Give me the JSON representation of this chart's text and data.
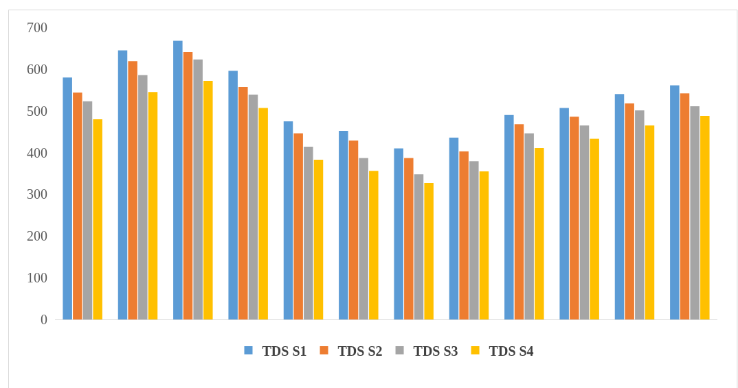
{
  "chart_data": {
    "type": "bar",
    "categories": [
      null,
      null,
      null,
      null,
      null,
      null,
      null,
      null,
      null,
      null,
      null,
      null
    ],
    "series": [
      {
        "name": "TDS S1",
        "color": "#5b9bd5",
        "values": [
          580,
          645,
          668,
          596,
          475,
          452,
          410,
          436,
          490,
          507,
          540,
          561
        ]
      },
      {
        "name": "TDS S2",
        "color": "#ed7d31",
        "values": [
          544,
          619,
          641,
          557,
          446,
          429,
          387,
          403,
          468,
          486,
          518,
          542
        ]
      },
      {
        "name": "TDS S3",
        "color": "#a5a5a5",
        "values": [
          523,
          586,
          623,
          539,
          414,
          387,
          348,
          379,
          446,
          465,
          501,
          511
        ]
      },
      {
        "name": "TDS S4",
        "color": "#ffc000",
        "values": [
          480,
          545,
          572,
          507,
          383,
          356,
          327,
          355,
          411,
          433,
          465,
          488
        ]
      }
    ],
    "ylim": [
      0,
      700
    ],
    "yticks": [
      0,
      100,
      200,
      300,
      400,
      500,
      600,
      700
    ],
    "grid": false,
    "legend": "bottom"
  }
}
